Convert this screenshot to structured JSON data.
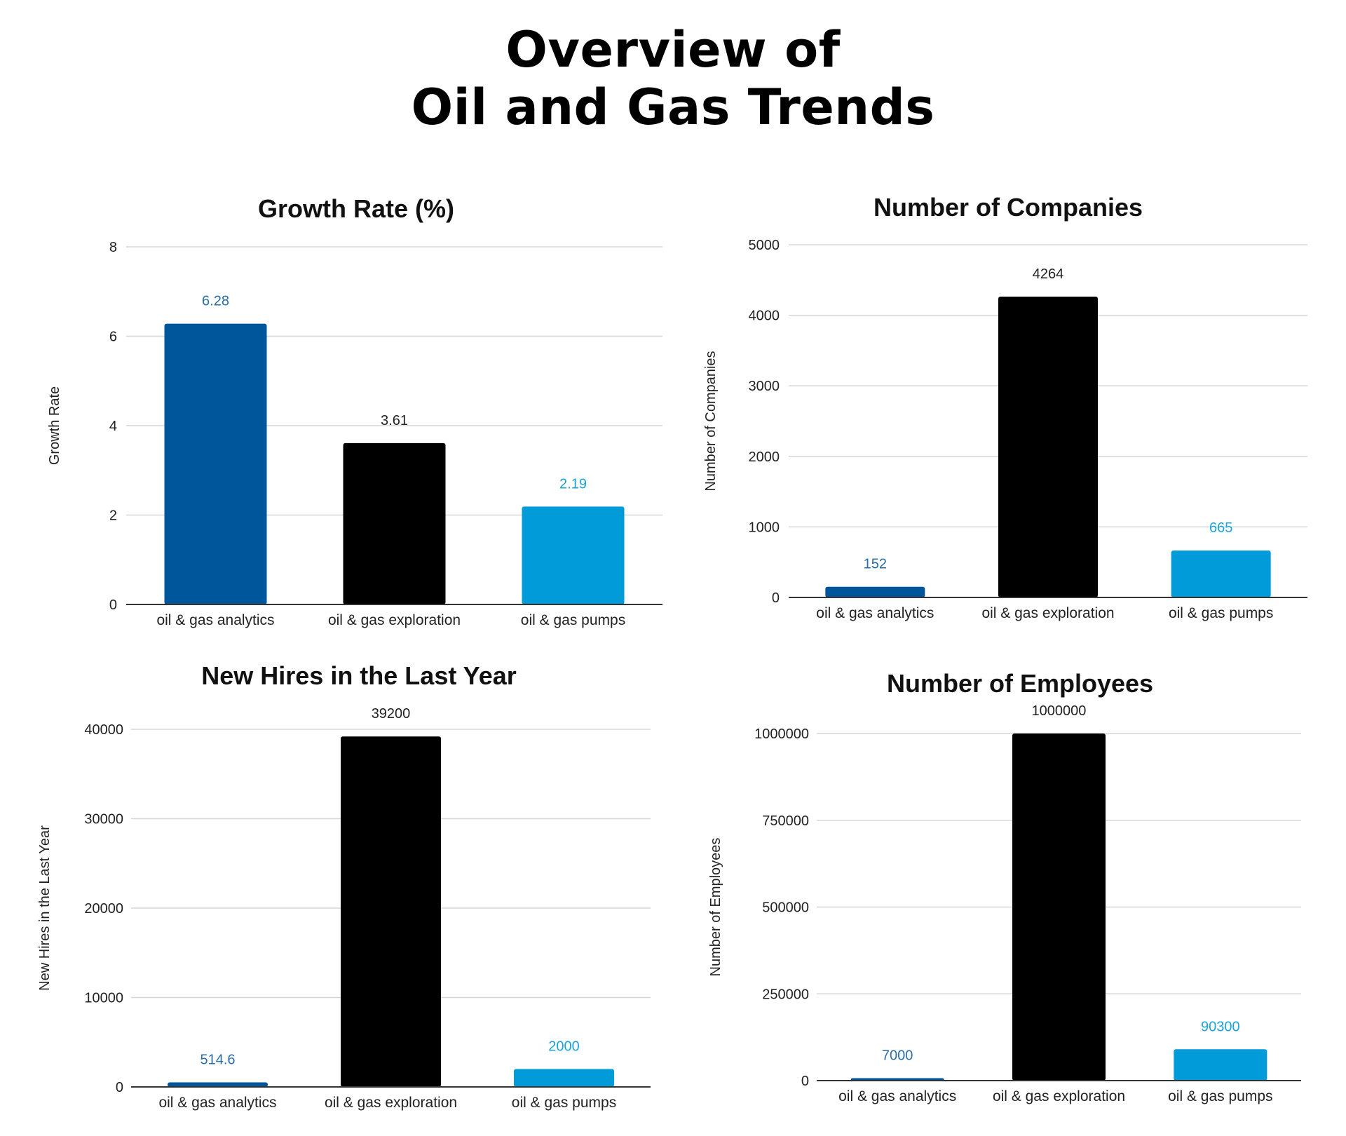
{
  "page": {
    "title_line1": "Overview of",
    "title_line2": "Oil and Gas Trends"
  },
  "colors": {
    "analytics": "#00569b",
    "exploration": "#000000",
    "pumps": "#019bd9",
    "grid": "#d6d6d6"
  },
  "chart_data": [
    {
      "type": "bar",
      "title": "Growth Rate (%)",
      "xlabel": "",
      "ylabel": "Growth Rate",
      "categories": [
        "oil & gas analytics",
        "oil & gas exploration",
        "oil & gas pumps"
      ],
      "values": [
        6.28,
        3.61,
        2.19
      ],
      "data_labels": [
        "6.28",
        "3.61",
        "2.19"
      ],
      "ylim": [
        0,
        8
      ],
      "yticks": [
        0,
        2,
        4,
        6,
        8
      ],
      "ytick_labels": [
        "0",
        "2",
        "4",
        "6",
        "8"
      ],
      "grid": true
    },
    {
      "type": "bar",
      "title": "Number of Companies",
      "xlabel": "",
      "ylabel": "Number of Companies",
      "categories": [
        "oil & gas analytics",
        "oil & gas exploration",
        "oil & gas pumps"
      ],
      "values": [
        152,
        4264,
        665
      ],
      "data_labels": [
        "152",
        "4264",
        "665"
      ],
      "ylim": [
        0,
        5000
      ],
      "yticks": [
        0,
        1000,
        2000,
        3000,
        4000,
        5000
      ],
      "ytick_labels": [
        "0",
        "1000",
        "2000",
        "3000",
        "4000",
        "5000"
      ],
      "grid": true
    },
    {
      "type": "bar",
      "title": "New Hires in the Last Year",
      "xlabel": "",
      "ylabel": "New Hires in the Last Year",
      "categories": [
        "oil & gas analytics",
        "oil & gas exploration",
        "oil & gas pumps"
      ],
      "values": [
        514.6,
        39200,
        2000
      ],
      "data_labels": [
        "514.6",
        "39200",
        "2000"
      ],
      "ylim": [
        0,
        40000
      ],
      "yticks": [
        0,
        10000,
        20000,
        30000,
        40000
      ],
      "ytick_labels": [
        "0",
        "10000",
        "20000",
        "30000",
        "40000"
      ],
      "grid": true
    },
    {
      "type": "bar",
      "title": "Number of Employees",
      "xlabel": "",
      "ylabel": "Number of Employees",
      "categories": [
        "oil & gas analytics",
        "oil & gas exploration",
        "oil & gas pumps"
      ],
      "values": [
        7000,
        1000000,
        90300
      ],
      "data_labels": [
        "7000",
        "1000000",
        "90300"
      ],
      "ylim": [
        0,
        1000000
      ],
      "yticks": [
        0,
        250000,
        500000,
        750000,
        1000000
      ],
      "ytick_labels": [
        "0",
        "250000",
        "500000",
        "750000",
        "1000000"
      ],
      "grid": true
    }
  ]
}
